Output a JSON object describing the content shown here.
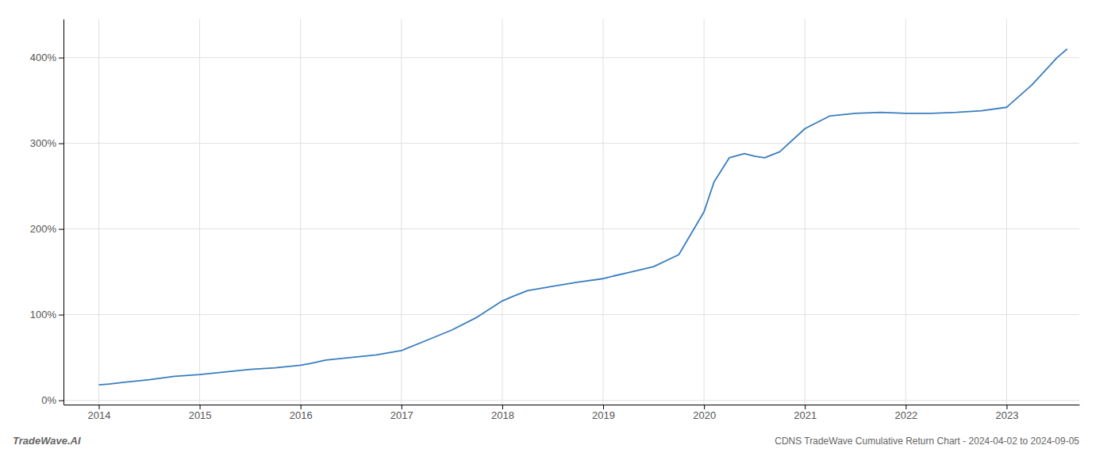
{
  "chart_data": {
    "type": "line",
    "title": "CDNS TradeWave Cumulative Return Chart - 2024-04-02 to 2024-09-05",
    "annotations": [
      "TradeWave.AI"
    ],
    "color": "#3a7ebf",
    "grid": true,
    "x": [
      2014.0,
      2014.1,
      2014.25,
      2014.5,
      2014.75,
      2015.0,
      2015.25,
      2015.5,
      2015.75,
      2016.0,
      2016.1,
      2016.25,
      2016.5,
      2016.75,
      2017.0,
      2017.25,
      2017.5,
      2017.75,
      2018.0,
      2018.1,
      2018.25,
      2018.5,
      2018.75,
      2019.0,
      2019.1,
      2019.25,
      2019.5,
      2019.75,
      2020.0,
      2020.1,
      2020.25,
      2020.4,
      2020.5,
      2020.6,
      2020.75,
      2021.0,
      2021.25,
      2021.5,
      2021.75,
      2022.0,
      2022.25,
      2022.5,
      2022.75,
      2023.0,
      2023.25,
      2023.5,
      2023.6
    ],
    "values": [
      18,
      19,
      21,
      24,
      28,
      30,
      33,
      36,
      38,
      41,
      43,
      47,
      50,
      53,
      58,
      70,
      82,
      97,
      116,
      121,
      128,
      133,
      138,
      142,
      145,
      149,
      156,
      170,
      220,
      255,
      283,
      288,
      285,
      283,
      290,
      317,
      332,
      335,
      336,
      335,
      335,
      336,
      338,
      342,
      368,
      400,
      410
    ],
    "xlim": [
      2013.65,
      2023.72
    ],
    "xticks": [
      2014,
      2015,
      2016,
      2017,
      2018,
      2019,
      2020,
      2021,
      2022,
      2023
    ],
    "ylim": [
      -5,
      445
    ],
    "yticks": [
      {
        "value": 0,
        "label": "0%"
      },
      {
        "value": 100,
        "label": "100%"
      },
      {
        "value": 200,
        "label": "200%"
      },
      {
        "value": 300,
        "label": "300%"
      },
      {
        "value": 400,
        "label": "400%"
      }
    ]
  }
}
